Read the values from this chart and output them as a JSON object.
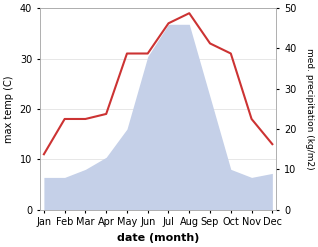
{
  "months": [
    "Jan",
    "Feb",
    "Mar",
    "Apr",
    "May",
    "Jun",
    "Jul",
    "Aug",
    "Sep",
    "Oct",
    "Nov",
    "Dec"
  ],
  "temperature": [
    11,
    18,
    18,
    19,
    31,
    31,
    37,
    39,
    33,
    31,
    18,
    13
  ],
  "precipitation": [
    8,
    8,
    10,
    13,
    20,
    38,
    46,
    46,
    28,
    10,
    8,
    9
  ],
  "temp_color": "#cc3333",
  "precip_color": "#c5d0e8",
  "ylabel_left": "max temp (C)",
  "ylabel_right": "med. precipitation (kg/m2)",
  "xlabel": "date (month)",
  "ylim_left": [
    0,
    40
  ],
  "ylim_right": [
    0,
    50
  ],
  "yticks_left": [
    0,
    10,
    20,
    30,
    40
  ],
  "yticks_right": [
    0,
    10,
    20,
    30,
    40,
    50
  ],
  "bg_color": "#ffffff",
  "grid_color": "#dddddd"
}
